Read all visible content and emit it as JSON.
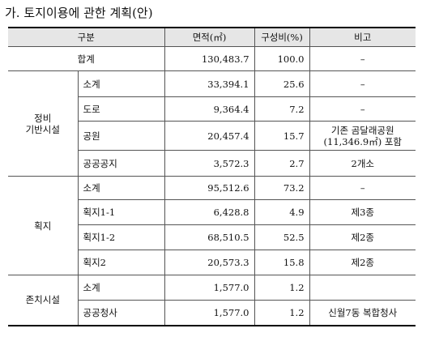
{
  "title": "가. 토지이용에 관한 계획(안)",
  "headers": {
    "category": "구분",
    "area": "면적(㎡)",
    "ratio": "구성비(%)",
    "note": "비고"
  },
  "total": {
    "label": "합계",
    "area": "130,483.7",
    "ratio": "100.0",
    "note": "–"
  },
  "groups": [
    {
      "name_line1": "정비",
      "name_line2": "기반시설",
      "rows": [
        {
          "label": "소계",
          "area": "33,394.1",
          "ratio": "25.6",
          "note": "–"
        },
        {
          "label": "도로",
          "area": "9,364.4",
          "ratio": "7.2",
          "note": "–"
        },
        {
          "label": "공원",
          "area": "20,457.4",
          "ratio": "15.7",
          "note_line1": "기존 곰달래공원",
          "note_line2": "(11,346.9㎡) 포함"
        },
        {
          "label": "공공공지",
          "area": "3,572.3",
          "ratio": "2.7",
          "note": "2개소"
        }
      ]
    },
    {
      "name": "획지",
      "rows": [
        {
          "label": "소계",
          "area": "95,512.6",
          "ratio": "73.2",
          "note": "–"
        },
        {
          "label": "획지1-1",
          "area": "6,428.8",
          "ratio": "4.9",
          "note": "제3종"
        },
        {
          "label": "획지1-2",
          "area": "68,510.5",
          "ratio": "52.5",
          "note": "제2종"
        },
        {
          "label": "획지2",
          "area": "20,573.3",
          "ratio": "15.8",
          "note": "제2종"
        }
      ]
    },
    {
      "name": "존치시설",
      "rows": [
        {
          "label": "소계",
          "area": "1,577.0",
          "ratio": "1.2",
          "note": ""
        },
        {
          "label": "공공청사",
          "area": "1,577.0",
          "ratio": "1.2",
          "note": "신월7동 복합청사"
        }
      ]
    }
  ]
}
